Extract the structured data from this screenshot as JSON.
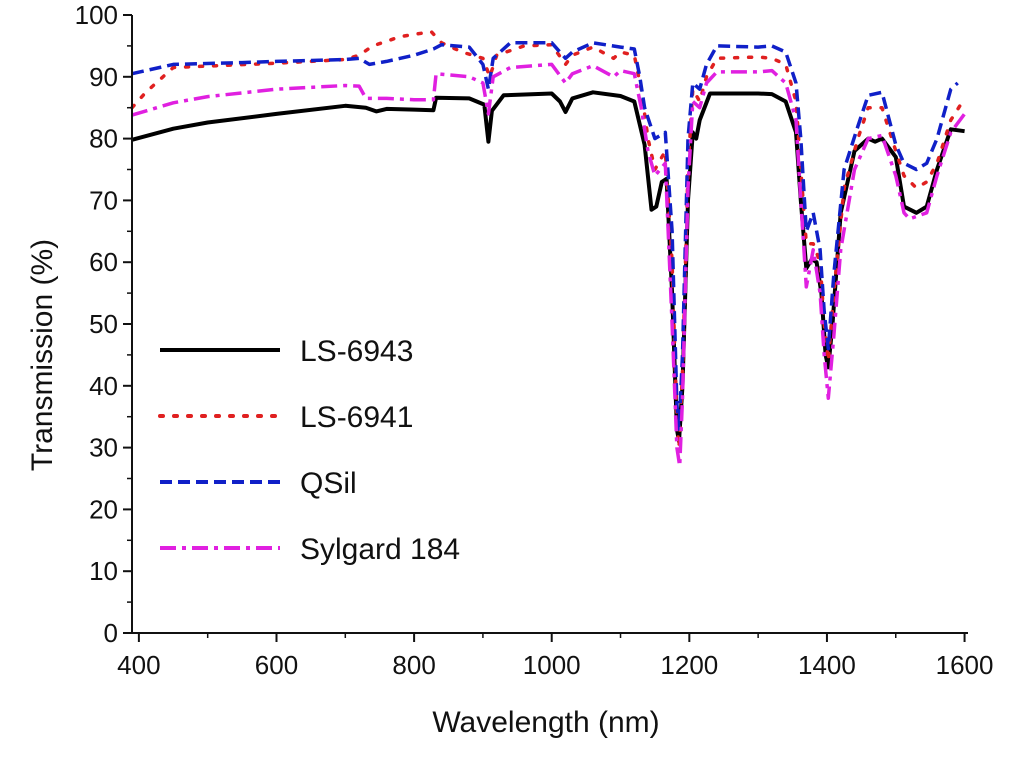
{
  "chart_data": {
    "type": "line",
    "title": "",
    "xlabel": "Wavelength (nm)",
    "ylabel": "Transmission (%)",
    "xlim": [
      390,
      1605
    ],
    "ylim": [
      0,
      100
    ],
    "xticks": [
      400,
      600,
      800,
      1000,
      1200,
      1400,
      1600
    ],
    "yticks": [
      0,
      10,
      20,
      30,
      40,
      50,
      60,
      70,
      80,
      90,
      100
    ],
    "grid": false,
    "legend": "center-left",
    "series": [
      {
        "name": "LS-6943",
        "color": "#000000",
        "dash": "solid",
        "points": [
          [
            390,
            79.8
          ],
          [
            450,
            81.6
          ],
          [
            500,
            82.6
          ],
          [
            600,
            84.0
          ],
          [
            700,
            85.3
          ],
          [
            730,
            85.0
          ],
          [
            745,
            84.4
          ],
          [
            760,
            84.8
          ],
          [
            800,
            84.7
          ],
          [
            828,
            84.6
          ],
          [
            832,
            86.6
          ],
          [
            880,
            86.5
          ],
          [
            902,
            85.5
          ],
          [
            908,
            79.5
          ],
          [
            913,
            84.5
          ],
          [
            930,
            87.0
          ],
          [
            1000,
            87.3
          ],
          [
            1012,
            86.0
          ],
          [
            1020,
            84.3
          ],
          [
            1030,
            86.5
          ],
          [
            1060,
            87.5
          ],
          [
            1100,
            86.9
          ],
          [
            1120,
            86.0
          ],
          [
            1135,
            79.0
          ],
          [
            1145,
            68.5
          ],
          [
            1152,
            69.0
          ],
          [
            1160,
            73.0
          ],
          [
            1167,
            73.5
          ],
          [
            1175,
            55.0
          ],
          [
            1182,
            33.0
          ],
          [
            1185,
            31.0
          ],
          [
            1190,
            40.0
          ],
          [
            1198,
            70.0
          ],
          [
            1205,
            81.0
          ],
          [
            1210,
            80.0
          ],
          [
            1215,
            83.0
          ],
          [
            1230,
            87.3
          ],
          [
            1300,
            87.3
          ],
          [
            1320,
            87.2
          ],
          [
            1340,
            86.0
          ],
          [
            1355,
            81.0
          ],
          [
            1362,
            70.0
          ],
          [
            1370,
            59.0
          ],
          [
            1378,
            60.5
          ],
          [
            1385,
            60.0
          ],
          [
            1392,
            55.0
          ],
          [
            1398,
            45.0
          ],
          [
            1402,
            43.0
          ],
          [
            1408,
            50.0
          ],
          [
            1420,
            68.0
          ],
          [
            1440,
            78.0
          ],
          [
            1460,
            80.0
          ],
          [
            1470,
            79.5
          ],
          [
            1480,
            80.0
          ],
          [
            1500,
            77.0
          ],
          [
            1512,
            69.0
          ],
          [
            1530,
            68.0
          ],
          [
            1545,
            69.0
          ],
          [
            1560,
            75.0
          ],
          [
            1580,
            81.5
          ],
          [
            1600,
            81.2
          ]
        ]
      },
      {
        "name": "LS-6941",
        "color": "#e02020",
        "dash": "dotted",
        "points": [
          [
            390,
            85.0
          ],
          [
            410,
            87.5
          ],
          [
            450,
            91.5
          ],
          [
            600,
            92.2
          ],
          [
            700,
            92.8
          ],
          [
            720,
            93.5
          ],
          [
            740,
            95.0
          ],
          [
            780,
            96.5
          ],
          [
            825,
            97.3
          ],
          [
            840,
            95.5
          ],
          [
            870,
            94.0
          ],
          [
            900,
            93.0
          ],
          [
            910,
            90.0
          ],
          [
            920,
            93.5
          ],
          [
            960,
            95.0
          ],
          [
            1000,
            95.2
          ],
          [
            1020,
            92.0
          ],
          [
            1030,
            93.5
          ],
          [
            1060,
            94.8
          ],
          [
            1090,
            93.0
          ],
          [
            1100,
            94.0
          ],
          [
            1120,
            93.5
          ],
          [
            1130,
            88.0
          ],
          [
            1140,
            80.0
          ],
          [
            1150,
            75.0
          ],
          [
            1165,
            78.0
          ],
          [
            1175,
            60.0
          ],
          [
            1182,
            34.0
          ],
          [
            1185,
            30.0
          ],
          [
            1190,
            42.0
          ],
          [
            1198,
            75.0
          ],
          [
            1205,
            88.0
          ],
          [
            1215,
            86.0
          ],
          [
            1225,
            90.0
          ],
          [
            1240,
            93.0
          ],
          [
            1300,
            93.2
          ],
          [
            1320,
            93.0
          ],
          [
            1340,
            92.0
          ],
          [
            1355,
            86.0
          ],
          [
            1362,
            75.0
          ],
          [
            1370,
            63.0
          ],
          [
            1380,
            63.0
          ],
          [
            1390,
            60.0
          ],
          [
            1396,
            50.0
          ],
          [
            1402,
            44.0
          ],
          [
            1410,
            55.0
          ],
          [
            1425,
            72.0
          ],
          [
            1445,
            80.0
          ],
          [
            1460,
            85.0
          ],
          [
            1480,
            85.0
          ],
          [
            1500,
            78.0
          ],
          [
            1512,
            74.0
          ],
          [
            1530,
            72.0
          ],
          [
            1545,
            73.0
          ],
          [
            1560,
            76.0
          ],
          [
            1580,
            83.0
          ],
          [
            1600,
            86.5
          ]
        ]
      },
      {
        "name": "QSil",
        "color": "#1020c8",
        "dash": "dashed",
        "points": [
          [
            390,
            90.5
          ],
          [
            450,
            92.0
          ],
          [
            550,
            92.3
          ],
          [
            600,
            92.5
          ],
          [
            700,
            92.8
          ],
          [
            720,
            93.0
          ],
          [
            735,
            92.0
          ],
          [
            760,
            92.5
          ],
          [
            800,
            93.5
          ],
          [
            828,
            94.5
          ],
          [
            840,
            95.2
          ],
          [
            880,
            94.8
          ],
          [
            900,
            92.0
          ],
          [
            908,
            88.0
          ],
          [
            915,
            93.0
          ],
          [
            940,
            95.5
          ],
          [
            1000,
            95.5
          ],
          [
            1020,
            93.0
          ],
          [
            1030,
            94.0
          ],
          [
            1060,
            95.5
          ],
          [
            1100,
            94.8
          ],
          [
            1120,
            94.5
          ],
          [
            1128,
            90.0
          ],
          [
            1135,
            85.0
          ],
          [
            1150,
            80.0
          ],
          [
            1165,
            81.0
          ],
          [
            1175,
            65.0
          ],
          [
            1182,
            37.0
          ],
          [
            1185,
            33.0
          ],
          [
            1190,
            45.0
          ],
          [
            1198,
            80.0
          ],
          [
            1205,
            89.0
          ],
          [
            1215,
            88.0
          ],
          [
            1225,
            92.0
          ],
          [
            1240,
            95.0
          ],
          [
            1300,
            94.8
          ],
          [
            1320,
            95.0
          ],
          [
            1340,
            94.0
          ],
          [
            1355,
            89.0
          ],
          [
            1362,
            80.0
          ],
          [
            1370,
            65.0
          ],
          [
            1380,
            68.0
          ],
          [
            1390,
            62.0
          ],
          [
            1396,
            52.0
          ],
          [
            1402,
            46.0
          ],
          [
            1410,
            58.0
          ],
          [
            1425,
            75.0
          ],
          [
            1445,
            82.0
          ],
          [
            1460,
            87.0
          ],
          [
            1480,
            87.5
          ],
          [
            1500,
            79.0
          ],
          [
            1512,
            76.0
          ],
          [
            1530,
            75.0
          ],
          [
            1545,
            76.0
          ],
          [
            1560,
            80.0
          ],
          [
            1580,
            88.0
          ],
          [
            1590,
            89.0
          ]
        ]
      },
      {
        "name": "Sylgard 184",
        "color": "#e020e0",
        "dash": "dashdot",
        "points": [
          [
            390,
            83.8
          ],
          [
            450,
            85.8
          ],
          [
            500,
            86.8
          ],
          [
            600,
            88.0
          ],
          [
            700,
            88.6
          ],
          [
            720,
            88.5
          ],
          [
            730,
            86.5
          ],
          [
            760,
            86.5
          ],
          [
            800,
            86.3
          ],
          [
            828,
            86.3
          ],
          [
            832,
            90.5
          ],
          [
            880,
            90.0
          ],
          [
            900,
            89.0
          ],
          [
            908,
            84.0
          ],
          [
            915,
            90.0
          ],
          [
            940,
            91.5
          ],
          [
            1000,
            92.0
          ],
          [
            1020,
            89.0
          ],
          [
            1030,
            90.5
          ],
          [
            1060,
            91.8
          ],
          [
            1090,
            90.0
          ],
          [
            1100,
            91.0
          ],
          [
            1120,
            90.5
          ],
          [
            1130,
            85.0
          ],
          [
            1140,
            78.0
          ],
          [
            1150,
            74.0
          ],
          [
            1165,
            76.0
          ],
          [
            1175,
            50.0
          ],
          [
            1182,
            30.0
          ],
          [
            1186,
            27.0
          ],
          [
            1190,
            38.0
          ],
          [
            1198,
            72.0
          ],
          [
            1205,
            86.0
          ],
          [
            1215,
            85.0
          ],
          [
            1225,
            89.0
          ],
          [
            1240,
            90.8
          ],
          [
            1300,
            90.8
          ],
          [
            1320,
            91.0
          ],
          [
            1340,
            89.0
          ],
          [
            1355,
            83.0
          ],
          [
            1362,
            70.0
          ],
          [
            1370,
            56.0
          ],
          [
            1380,
            62.0
          ],
          [
            1390,
            55.0
          ],
          [
            1396,
            45.0
          ],
          [
            1402,
            38.0
          ],
          [
            1410,
            48.0
          ],
          [
            1420,
            62.0
          ],
          [
            1440,
            75.0
          ],
          [
            1460,
            80.0
          ],
          [
            1480,
            80.5
          ],
          [
            1500,
            74.0
          ],
          [
            1512,
            68.0
          ],
          [
            1520,
            67.0
          ],
          [
            1545,
            68.0
          ],
          [
            1560,
            74.0
          ],
          [
            1580,
            81.0
          ],
          [
            1600,
            84.0
          ]
        ]
      }
    ]
  }
}
